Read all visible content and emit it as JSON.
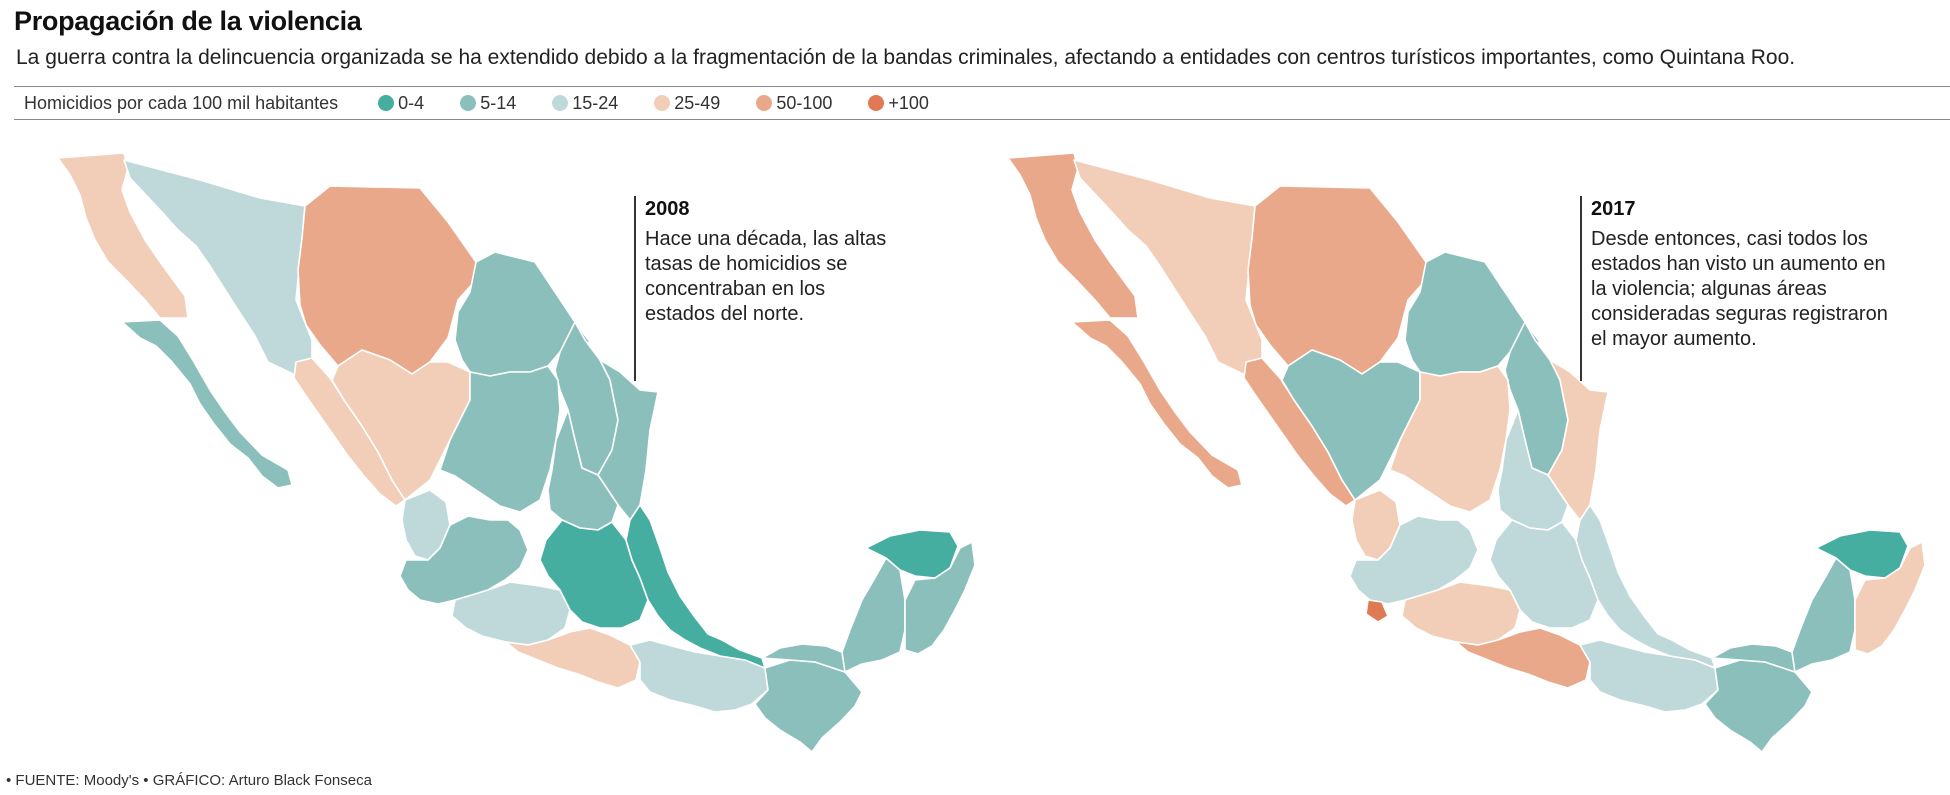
{
  "header": {
    "title": "Propagación de la violencia",
    "subtitle": "La guerra contra la delincuencia organizada se ha extendido debido a la fragmentación de la bandas criminales, afectando a entidades con centros turísticos importantes, como Quintana Roo."
  },
  "legend": {
    "title": "Homicidios por cada 100 mil habitantes",
    "items": [
      {
        "label": "0-4",
        "color": "#46ada1"
      },
      {
        "label": "5-14",
        "color": "#8bbfbc"
      },
      {
        "label": "15-24",
        "color": "#bfd9da"
      },
      {
        "label": "25-49",
        "color": "#f2cdb7"
      },
      {
        "label": "50-100",
        "color": "#e9a88a"
      },
      {
        "label": "+100",
        "color": "#df7a55"
      }
    ]
  },
  "maps": [
    {
      "year": "2008",
      "note": "Hace una década, las altas tasas de homicidios se concentraban en los estados del norte.",
      "regions": {
        "baja_california": "25-49",
        "sonora": "15-24",
        "chihuahua": "50-100",
        "coahuila": "5-14",
        "nuevo_leon": "5-14",
        "tamaulipas": "5-14",
        "baja_california_sur": "5-14",
        "sinaloa": "25-49",
        "durango": "25-49",
        "zacatecas": "5-14",
        "nayarit": "15-24",
        "jalisco": "5-14",
        "michoacan": "15-24",
        "guerrero": "25-49",
        "oaxaca": "15-24",
        "chiapas": "5-14",
        "centro": "0-4",
        "veracruz": "0-4",
        "tabasco": "5-14",
        "campeche": "5-14",
        "yucatan": "0-4",
        "quintana_roo": "5-14"
      }
    },
    {
      "year": "2017",
      "note": "Desde entonces, casi todos los estados han visto un aumento en la violencia; algunas áreas consideradas seguras registraron el mayor aumento.",
      "regions": {
        "baja_california": "50-100",
        "sonora": "25-49",
        "chihuahua": "50-100",
        "coahuila": "5-14",
        "nuevo_leon": "5-14",
        "tamaulipas": "25-49",
        "baja_california_sur": "50-100",
        "sinaloa": "50-100",
        "durango": "5-14",
        "zacatecas": "25-49",
        "nayarit": "25-49",
        "jalisco": "15-24",
        "colima": "+100",
        "michoacan": "25-49",
        "guerrero": "50-100",
        "oaxaca": "15-24",
        "chiapas": "5-14",
        "centro": "15-24",
        "veracruz": "15-24",
        "tabasco": "5-14",
        "campeche": "5-14",
        "yucatan": "0-4",
        "quintana_roo": "25-49"
      }
    }
  ],
  "footer": {
    "source": "• FUENTE: Moody's • GRÁFICO: Arturo Black Fonseca"
  }
}
